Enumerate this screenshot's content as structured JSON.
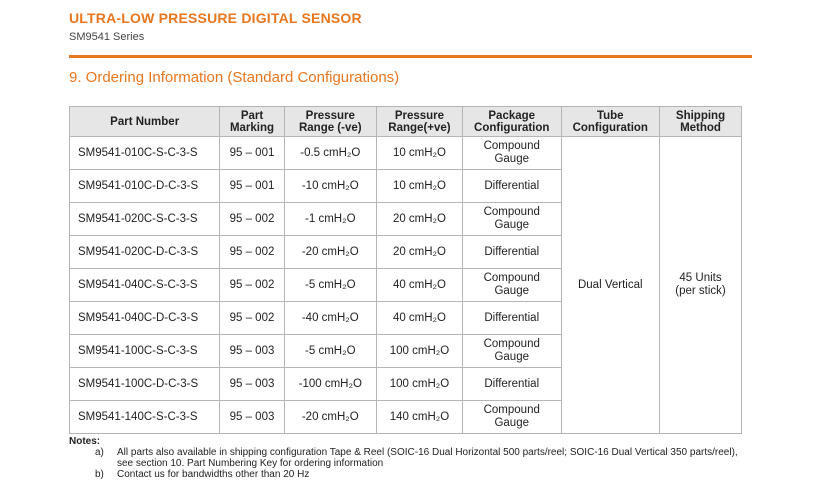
{
  "header": {
    "title": "ULTRA-LOW PRESSURE DIGITAL SENSOR",
    "subtitle": "SM9541 Series"
  },
  "section": {
    "title": "9.  Ordering Information (Standard Configurations)"
  },
  "table": {
    "headers": {
      "part_number": "Part Number",
      "part_marking": [
        "Part",
        "Marking"
      ],
      "pressure_neg": [
        "Pressure",
        "Range (-ve)"
      ],
      "pressure_pos": [
        "Pressure",
        "Range(+ve)"
      ],
      "package": [
        "Package",
        "Configuration"
      ],
      "tube": [
        "Tube",
        "Configuration"
      ],
      "shipping": [
        "Shipping",
        "Method"
      ]
    },
    "tube_value": "Dual Vertical",
    "shipping_value": [
      "45 Units",
      "(per stick)"
    ],
    "rows": [
      {
        "part": "SM9541-010C-S-C-3-S",
        "marking": "95 – 001",
        "neg": "-0.5 cmH₂O",
        "pos": "10 cmH₂O",
        "package": [
          "Compound",
          "Gauge"
        ]
      },
      {
        "part": "SM9541-010C-D-C-3-S",
        "marking": "95 – 001",
        "neg": "-10 cmH₂O",
        "pos": "10 cmH₂O",
        "package": [
          "Differential",
          ""
        ]
      },
      {
        "part": "SM9541-020C-S-C-3-S",
        "marking": "95 – 002",
        "neg": "-1 cmH₂O",
        "pos": "20 cmH₂O",
        "package": [
          "Compound",
          "Gauge"
        ]
      },
      {
        "part": "SM9541-020C-D-C-3-S",
        "marking": "95 – 002",
        "neg": "-20 cmH₂O",
        "pos": "20 cmH₂O",
        "package": [
          "Differential",
          ""
        ]
      },
      {
        "part": "SM9541-040C-S-C-3-S",
        "marking": "95 – 002",
        "neg": "-5 cmH₂O",
        "pos": "40 cmH₂O",
        "package": [
          "Compound",
          "Gauge"
        ]
      },
      {
        "part": "SM9541-040C-D-C-3-S",
        "marking": "95 – 002",
        "neg": "-40 cmH₂O",
        "pos": "40 cmH₂O",
        "package": [
          "Differential",
          ""
        ]
      },
      {
        "part": "SM9541-100C-S-C-3-S",
        "marking": "95 – 003",
        "neg": "-5 cmH₂O",
        "pos": "100 cmH₂O",
        "package": [
          "Compound",
          "Gauge"
        ]
      },
      {
        "part": "SM9541-100C-D-C-3-S",
        "marking": "95 – 003",
        "neg": "-100 cmH₂O",
        "pos": "100 cmH₂O",
        "package": [
          "Differential",
          ""
        ]
      },
      {
        "part": "SM9541-140C-S-C-3-S",
        "marking": "95 – 003",
        "neg": "-20 cmH₂O",
        "pos": "140 cmH₂O",
        "package": [
          "Compound",
          "Gauge"
        ]
      }
    ]
  },
  "notes": {
    "label": "Notes",
    "items": [
      {
        "key": "a)",
        "text": "All parts also available in shipping configuration Tape & Reel (SOIC-16 Dual Horizontal 500 parts/reel; SOIC-16 Dual Vertical 350 parts/reel), see section 10. Part Numbering Key for ordering information"
      },
      {
        "key": "b)",
        "text": "Contact us for bandwidths other than 20 Hz"
      }
    ]
  },
  "colors": {
    "accent": "#e8761e",
    "header_bg": "#e6e6e6"
  }
}
